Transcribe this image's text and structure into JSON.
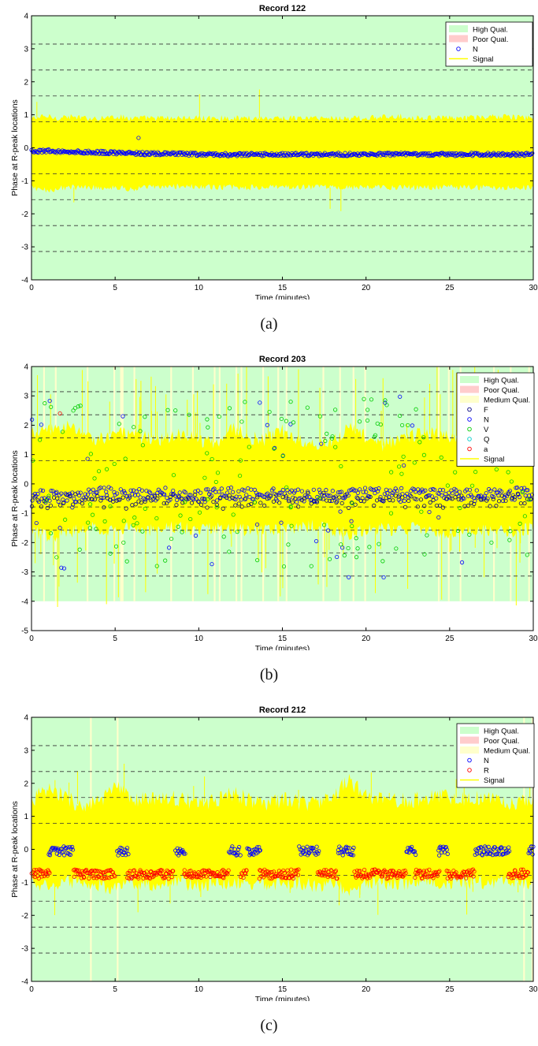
{
  "charts": [
    {
      "title": "Record 122",
      "xlabel": "Time (minutes)",
      "ylabel": "Phase at R-peak locations",
      "xlim": [
        0,
        30
      ],
      "ylim": [
        -4,
        4
      ],
      "xticks": [
        0,
        5,
        10,
        15,
        20,
        25,
        30
      ],
      "yticks": [
        -4,
        -3,
        -2,
        -1,
        0,
        1,
        2,
        3,
        4
      ],
      "dashed_refs": [
        3.14159,
        2.35619,
        1.5708,
        0.7854,
        -0.7854,
        -1.5708,
        -2.35619,
        -3.14159
      ],
      "caption": "(a)"
    },
    {
      "title": "Record 203",
      "xlabel": "Time (minutes)",
      "ylabel": "Phase at R-peak locations",
      "xlim": [
        0,
        30
      ],
      "ylim": [
        -5,
        4
      ],
      "xticks": [
        0,
        5,
        10,
        15,
        20,
        25,
        30
      ],
      "yticks": [
        -5,
        -4,
        -3,
        -2,
        -1,
        0,
        1,
        2,
        3,
        4
      ],
      "dashed_refs": [
        3.14159,
        2.35619,
        1.5708,
        0.7854,
        -0.7854,
        -1.5708,
        -2.35619,
        -3.14159
      ],
      "caption": "(b)"
    },
    {
      "title": "Record 212",
      "xlabel": "Time (minutes)",
      "ylabel": "Phase at R-peak locations",
      "xlim": [
        0,
        30
      ],
      "ylim": [
        -4,
        4
      ],
      "xticks": [
        0,
        5,
        10,
        15,
        20,
        25,
        30
      ],
      "yticks": [
        -4,
        -3,
        -2,
        -1,
        0,
        1,
        2,
        3,
        4
      ],
      "dashed_refs": [
        3.14159,
        2.35619,
        1.5708,
        0.7854,
        -0.7854,
        -1.5708,
        -2.35619,
        -3.14159
      ],
      "caption": "(c)"
    }
  ],
  "chart_data": [
    {
      "type": "scatter",
      "title": "Record 122",
      "xlabel": "Time (minutes)",
      "ylabel": "Phase at R-peak locations",
      "xlim": [
        0,
        30
      ],
      "ylim": [
        -4,
        4
      ],
      "grid": "dashed reference lines at multiples of pi/4",
      "legend_position": "top-right",
      "legend": [
        {
          "label": "High Qual.",
          "kind": "patch",
          "color": "#ccffcc"
        },
        {
          "label": "Poor Qual.",
          "kind": "patch",
          "color": "#ffcccc"
        },
        {
          "label": "N",
          "kind": "marker",
          "color": "#0000ff"
        },
        {
          "label": "Signal",
          "kind": "line",
          "color": "#ffff00"
        }
      ],
      "signal_envelope": {
        "x": [
          0,
          1,
          1.5,
          2,
          3,
          4,
          5,
          6,
          7,
          8,
          9,
          10,
          12,
          14,
          16,
          18,
          20,
          22,
          24,
          26,
          28,
          30
        ],
        "upper": [
          0.9,
          0.95,
          0.9,
          0.95,
          0.9,
          0.9,
          0.95,
          0.9,
          0.9,
          0.9,
          0.9,
          0.9,
          0.9,
          0.9,
          0.9,
          0.9,
          0.9,
          0.95,
          0.9,
          0.9,
          0.95,
          0.9
        ],
        "lower": [
          -1.2,
          -1.3,
          -1.25,
          -1.2,
          -1.2,
          -1.2,
          -1.2,
          -1.25,
          -1.2,
          -1.2,
          -1.15,
          -1.2,
          -1.2,
          -1.2,
          -1.2,
          -1.2,
          -1.2,
          -1.2,
          -1.2,
          -1.2,
          -1.2,
          -1.2
        ]
      },
      "series": [
        {
          "name": "N",
          "color": "#0000ff",
          "x": [
            0,
            1,
            2,
            3,
            4,
            5,
            6,
            7,
            8,
            9,
            10,
            12,
            14,
            16,
            18,
            20,
            22,
            24,
            26,
            28,
            30
          ],
          "y": [
            -0.1,
            -0.1,
            -0.12,
            -0.13,
            -0.14,
            -0.15,
            -0.17,
            -0.18,
            -0.18,
            -0.19,
            -0.2,
            -0.21,
            -0.2,
            -0.2,
            -0.2,
            -0.2,
            -0.2,
            -0.2,
            -0.2,
            -0.2,
            -0.2
          ]
        }
      ]
    },
    {
      "type": "scatter",
      "title": "Record 203",
      "xlabel": "Time (minutes)",
      "ylabel": "Phase at R-peak locations",
      "xlim": [
        0,
        30
      ],
      "ylim": [
        -5,
        4
      ],
      "grid": "dashed reference lines at multiples of pi/4",
      "legend_position": "top-right",
      "legend": [
        {
          "label": "High Qual.",
          "kind": "patch",
          "color": "#ccffcc"
        },
        {
          "label": "Poor Qual.",
          "kind": "patch",
          "color": "#ffcccc"
        },
        {
          "label": "Medium Qual.",
          "kind": "patch",
          "color": "#ffffcc"
        },
        {
          "label": "F",
          "kind": "marker",
          "color": "#000080"
        },
        {
          "label": "N",
          "kind": "marker",
          "color": "#0000ff"
        },
        {
          "label": "V",
          "kind": "marker",
          "color": "#00cc00"
        },
        {
          "label": "Q",
          "kind": "marker",
          "color": "#00cccc"
        },
        {
          "label": "a",
          "kind": "marker",
          "color": "#ff0000"
        },
        {
          "label": "Signal",
          "kind": "line",
          "color": "#ffff00"
        }
      ],
      "signal_envelope": {
        "x": [
          0,
          1,
          2,
          3,
          4,
          5,
          6,
          7,
          8,
          9,
          10,
          11,
          12,
          13,
          14,
          15,
          16,
          17,
          18,
          19,
          20,
          21,
          22,
          23,
          24,
          25,
          26,
          27,
          28,
          29,
          30
        ],
        "upper": [
          1.7,
          1.8,
          2.0,
          1.7,
          1.5,
          1.8,
          1.6,
          1.6,
          1.5,
          1.7,
          1.5,
          1.4,
          1.9,
          1.6,
          1.5,
          1.8,
          1.5,
          1.4,
          1.5,
          1.9,
          1.6,
          1.3,
          1.6,
          1.7,
          1.7,
          1.6,
          1.7,
          1.6,
          1.5,
          1.6,
          1.6
        ],
        "lower": [
          -1.6,
          -1.8,
          -1.7,
          -1.5,
          -1.5,
          -1.6,
          -1.5,
          -1.6,
          -1.4,
          -1.5,
          -1.6,
          -1.5,
          -1.5,
          -1.6,
          -1.6,
          -1.5,
          -1.5,
          -1.4,
          -1.6,
          -1.7,
          -1.6,
          -1.5,
          -1.6,
          -1.5,
          -1.6,
          -1.7,
          -1.5,
          -1.6,
          -1.6,
          -1.6,
          -1.5
        ]
      },
      "medium_quality_spans": [
        [
          0.7,
          0.8
        ],
        [
          1.4,
          1.5
        ],
        [
          3.3,
          3.4
        ],
        [
          4.9,
          5.0
        ],
        [
          5.3,
          5.5
        ],
        [
          6.1,
          6.2
        ],
        [
          8.3,
          8.4
        ],
        [
          9.6,
          9.7
        ],
        [
          10.9,
          11.0
        ],
        [
          11.2,
          11.3
        ],
        [
          12.2,
          12.3
        ],
        [
          12.5,
          12.6
        ],
        [
          13.8,
          13.9
        ],
        [
          14.7,
          14.8
        ],
        [
          15.2,
          15.3
        ],
        [
          17.4,
          17.5
        ],
        [
          18.4,
          18.5
        ],
        [
          19.2,
          19.3
        ],
        [
          19.9,
          20.0
        ],
        [
          24.3,
          24.4
        ],
        [
          24.9,
          25.0
        ],
        [
          25.6,
          25.7
        ],
        [
          27.6,
          27.7
        ],
        [
          28.6,
          28.7
        ],
        [
          29.7,
          29.8
        ]
      ],
      "series": [
        {
          "name": "N",
          "color": "#0000ff",
          "x": [
            0,
            2,
            4,
            6,
            8,
            10,
            12,
            14,
            16,
            18,
            20,
            22,
            24,
            26,
            28,
            30
          ],
          "y": [
            -0.4,
            -0.45,
            -0.3,
            -0.4,
            -0.35,
            -0.4,
            -0.35,
            -0.35,
            -0.4,
            -0.4,
            -0.35,
            -0.35,
            -0.4,
            -0.35,
            -0.4,
            -0.3
          ]
        },
        {
          "name": "F",
          "color": "#000080",
          "x": [
            1,
            3,
            5,
            7,
            9,
            11,
            13,
            15,
            17,
            19,
            21,
            23,
            25,
            27,
            29
          ],
          "y": [
            -0.6,
            -0.5,
            -0.7,
            -0.6,
            -0.5,
            -0.65,
            -0.55,
            -0.6,
            -0.5,
            -0.6,
            -0.55,
            -0.6,
            -0.6,
            -0.55,
            -0.5
          ]
        },
        {
          "name": "V",
          "color": "#00cc00",
          "x": [
            0.5,
            1.5,
            2.5,
            3.5,
            4.5,
            5.5,
            6.5,
            7.5,
            8.5,
            9.5,
            10.5,
            11.5,
            12.5,
            13.5,
            14.5,
            15.5,
            16.5,
            17.5,
            18.5,
            19.5,
            20.5,
            21.5,
            22.5,
            23.5,
            24.5,
            25.5,
            26.5,
            27.5,
            28.5,
            29.5
          ],
          "y": [
            1.5,
            -2.5,
            2.5,
            -1.5,
            0.5,
            -2.0,
            1.8,
            -2.8,
            0.3,
            -1.2,
            2.2,
            -1.8,
            0.8,
            -2.6,
            1.2,
            -0.8,
            2.6,
            -1.4,
            0.6,
            -2.2,
            1.6,
            -1.0,
            2.0,
            -2.4,
            0.9,
            -1.6,
            1.4,
            -2.0,
            0.4,
            -1.1
          ]
        },
        {
          "name": "a",
          "color": "#ff0000",
          "x": [
            1.7
          ],
          "y": [
            2.4
          ]
        }
      ]
    },
    {
      "type": "scatter",
      "title": "Record 212",
      "xlabel": "Time (minutes)",
      "ylabel": "Phase at R-peak locations",
      "xlim": [
        0,
        30
      ],
      "ylim": [
        -4,
        4
      ],
      "grid": "dashed reference lines at multiples of pi/4",
      "legend_position": "top-right",
      "legend": [
        {
          "label": "High Qual.",
          "kind": "patch",
          "color": "#ccffcc"
        },
        {
          "label": "Poor Qual.",
          "kind": "patch",
          "color": "#ffcccc"
        },
        {
          "label": "Medium Qual.",
          "kind": "patch",
          "color": "#ffffcc"
        },
        {
          "label": "N",
          "kind": "marker",
          "color": "#0000ff"
        },
        {
          "label": "R",
          "kind": "marker",
          "color": "#ff0000"
        },
        {
          "label": "Signal",
          "kind": "line",
          "color": "#ffff00"
        }
      ],
      "signal_envelope": {
        "x": [
          0,
          1,
          2,
          3,
          4,
          5,
          6,
          7,
          8,
          9,
          10,
          11,
          12,
          13,
          14,
          15,
          16,
          17,
          18,
          19,
          20,
          21,
          22,
          23,
          24,
          25,
          26,
          27,
          28,
          29,
          30
        ],
        "upper": [
          1.5,
          1.8,
          1.6,
          1.3,
          1.4,
          1.9,
          1.5,
          1.5,
          1.6,
          1.5,
          1.4,
          1.5,
          1.7,
          1.5,
          1.4,
          1.5,
          1.4,
          1.4,
          1.6,
          2.1,
          1.6,
          1.5,
          1.5,
          1.5,
          1.6,
          1.6,
          1.5,
          1.6,
          1.5,
          1.4,
          1.6
        ],
        "lower": [
          -1.0,
          -1.1,
          -1.0,
          -1.0,
          -1.1,
          -1.2,
          -1.0,
          -1.1,
          -1.0,
          -1.0,
          -1.1,
          -1.0,
          -1.0,
          -1.0,
          -1.1,
          -1.0,
          -1.0,
          -1.1,
          -1.0,
          -1.3,
          -1.0,
          -1.0,
          -1.1,
          -1.0,
          -1.0,
          -1.0,
          -1.0,
          -1.0,
          -1.0,
          -1.0,
          -1.1
        ]
      },
      "medium_quality_spans": [
        [
          3.5,
          3.6
        ],
        [
          5.1,
          5.2
        ],
        [
          29.4,
          29.5
        ],
        [
          29.9,
          30.0
        ]
      ],
      "series": [
        {
          "name": "N",
          "color": "#0000ff",
          "segments": [
            [
              1.0,
              2.5
            ],
            [
              5.1,
              5.8
            ],
            [
              8.6,
              9.2
            ],
            [
              11.8,
              12.5
            ],
            [
              12.9,
              13.7
            ],
            [
              16.0,
              17.2
            ],
            [
              18.3,
              19.3
            ],
            [
              22.4,
              23.0
            ],
            [
              24.3,
              24.9
            ],
            [
              26.5,
              28.6
            ],
            [
              29.7,
              30.0
            ]
          ],
          "y": -0.05
        },
        {
          "name": "R",
          "color": "#ff0000",
          "segments": [
            [
              0.0,
              1.1
            ],
            [
              2.5,
              5.0
            ],
            [
              5.7,
              8.5
            ],
            [
              9.1,
              11.8
            ],
            [
              12.5,
              12.9
            ],
            [
              13.6,
              16.0
            ],
            [
              17.1,
              18.3
            ],
            [
              19.3,
              22.4
            ],
            [
              22.9,
              24.4
            ],
            [
              24.8,
              26.5
            ],
            [
              28.5,
              29.7
            ]
          ],
          "y": -0.75
        }
      ]
    }
  ]
}
